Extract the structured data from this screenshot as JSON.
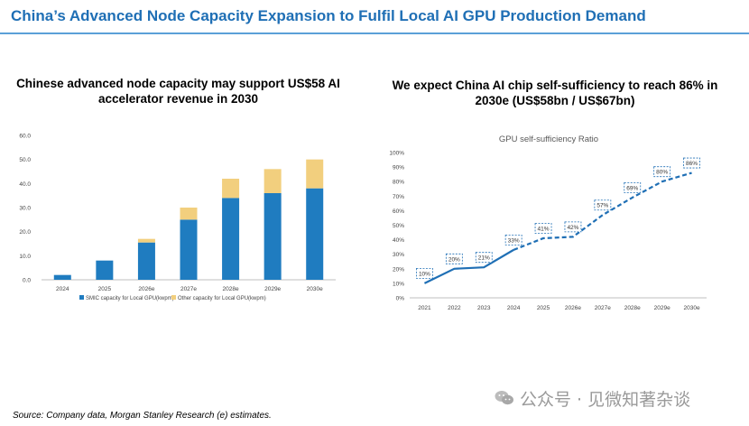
{
  "page": {
    "title": "China’s Advanced Node Capacity Expansion to Fulfil Local AI GPU Production Demand",
    "source": "Source: Company data, Morgan Stanley Research (e) estimates.",
    "watermark": "公众号 · 见微知著杂谈"
  },
  "chart_data": [
    {
      "type": "bar",
      "stacked": true,
      "heading": "Chinese advanced node capacity may support US$58 AI accelerator revenue in 2030",
      "categories": [
        "2024",
        "2025",
        "2026e",
        "2027e",
        "2028e",
        "2029e",
        "2030e"
      ],
      "series": [
        {
          "name": "SMIC capacity for Local GPU(kwpm)",
          "color": "#1f7cc0",
          "values": [
            2,
            8,
            15.5,
            25,
            34,
            36,
            38
          ]
        },
        {
          "name": "Other capacity for Local GPU(kwpm)",
          "color": "#f2cf7e",
          "values": [
            0,
            0,
            1.5,
            5,
            8,
            10,
            12
          ]
        }
      ],
      "ylim": [
        0,
        60
      ],
      "yticks": [
        "0.0",
        "10.0",
        "20.0",
        "30.0",
        "40.0",
        "50.0",
        "60.0"
      ],
      "grid": false,
      "legend": "bottom"
    },
    {
      "type": "line",
      "heading": "We expect China AI chip self-sufficiency to reach 86% in 2030e (US$58bn / US$67bn)",
      "title": "GPU self-sufficiency Ratio",
      "x": [
        "2021",
        "2022",
        "2023",
        "2024",
        "2025",
        "2026e",
        "2027e",
        "2028e",
        "2029e",
        "2030e"
      ],
      "values": [
        10,
        20,
        21,
        33,
        41,
        42,
        57,
        69,
        80,
        86
      ],
      "labels": [
        "10%",
        "20%",
        "21%",
        "33%",
        "41%",
        "42%",
        "57%",
        "69%",
        "80%",
        "86%"
      ],
      "color": "#1f6fb5",
      "solid_until": "2024",
      "ylim": [
        0,
        100
      ],
      "yticks": [
        "0%",
        "10%",
        "20%",
        "30%",
        "40%",
        "50%",
        "60%",
        "70%",
        "80%",
        "90%",
        "100%"
      ],
      "grid": false
    }
  ]
}
